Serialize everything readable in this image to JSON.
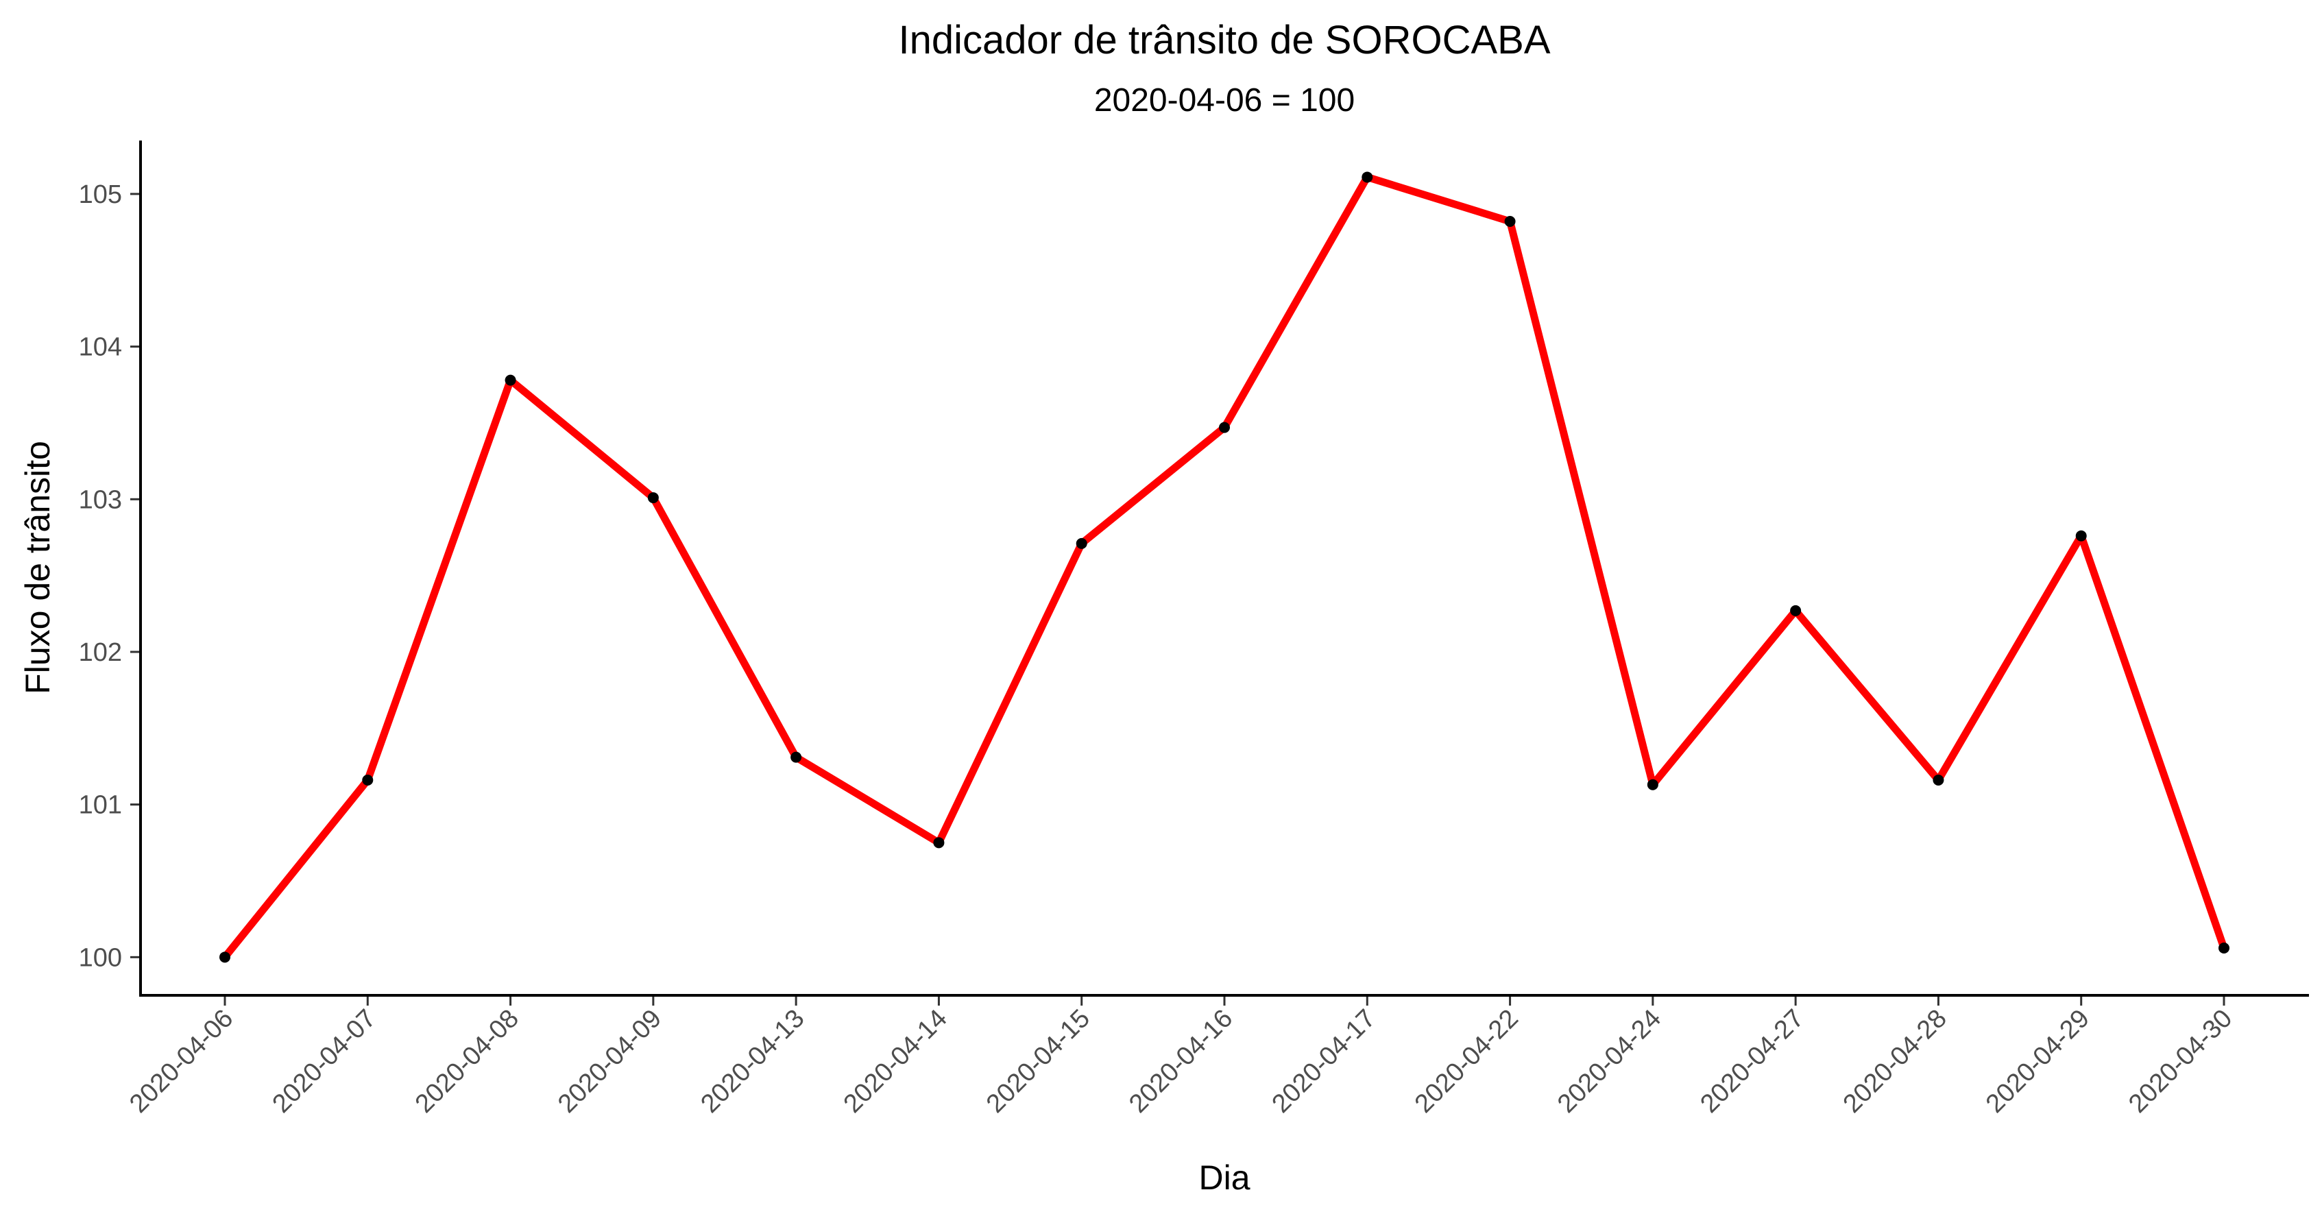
{
  "chart_data": {
    "type": "line",
    "title": "Indicador de trânsito de SOROCABA",
    "subtitle": "2020-04-06 = 100",
    "xlabel": "Dia",
    "ylabel": "Fluxo de trânsito",
    "categories": [
      "2020-04-06",
      "2020-04-07",
      "2020-04-08",
      "2020-04-09",
      "2020-04-13",
      "2020-04-14",
      "2020-04-15",
      "2020-04-16",
      "2020-04-17",
      "2020-04-22",
      "2020-04-24",
      "2020-04-27",
      "2020-04-28",
      "2020-04-29",
      "2020-04-30"
    ],
    "series": [
      {
        "color": "#ff0000",
        "values": [
          100.0,
          101.16,
          103.78,
          103.01,
          101.31,
          100.75,
          102.71,
          103.47,
          105.11,
          104.82,
          101.13,
          102.27,
          101.16,
          102.76,
          100.06
        ]
      }
    ],
    "ylim": [
      99.75,
      105.35
    ],
    "yticks": [
      100,
      101,
      102,
      103,
      104,
      105
    ],
    "grid": false,
    "legend": "none"
  }
}
